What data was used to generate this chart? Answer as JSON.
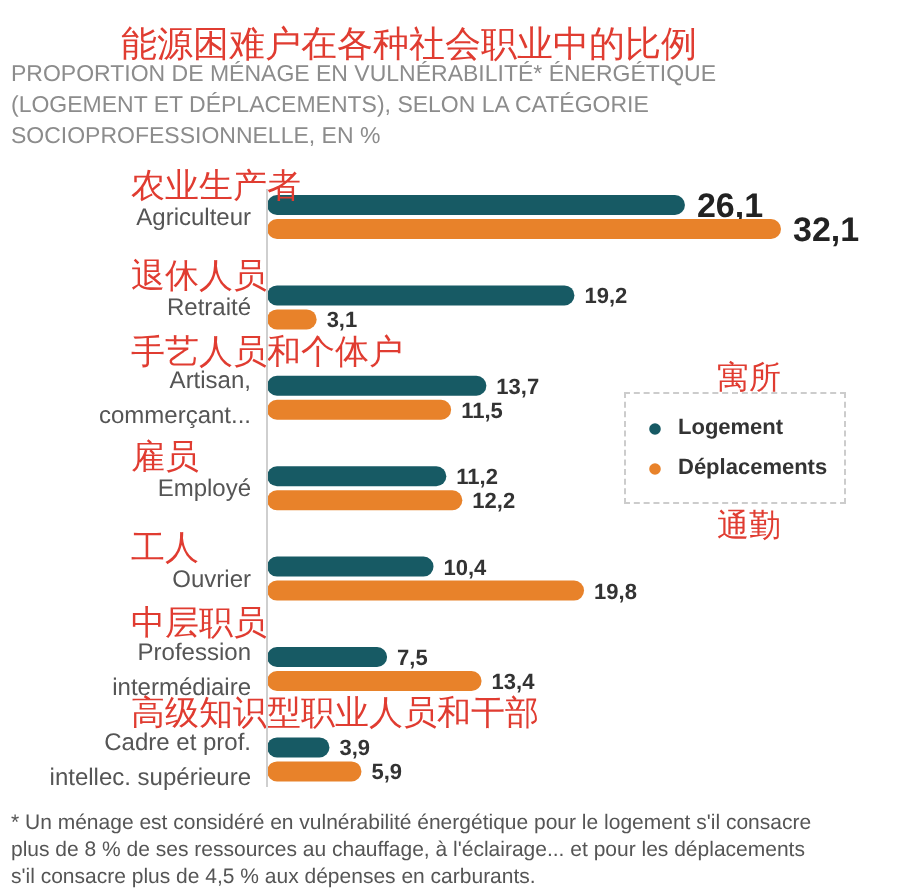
{
  "chart_data": {
    "type": "bar",
    "orientation": "horizontal",
    "title": "能源困难户在各种社会职业中的比例",
    "subtitle": "PROPORTION DE MÉNAGE EN VULNÉRABILITÉ* ÉNERGÉTIQUE (LOGEMENT ET DÉPLACEMENTS), SELON LA CATÉGORIE SOCIOPROFESSIONNELLE, EN %",
    "categories": [
      "Agriculteur",
      "Retraité",
      "Artisan, commerçant...",
      "Employé",
      "Ouvrier",
      "Profession intermédiaire",
      "Cadre et prof. intellec. supérieure"
    ],
    "series": [
      {
        "name": "Logement",
        "color": "#175a64",
        "values": [
          26.1,
          19.2,
          13.7,
          11.2,
          10.4,
          7.5,
          3.9
        ],
        "value_labels": [
          "26,1",
          "19,2",
          "13,7",
          "11,2",
          "10,4",
          "7,5",
          "3,9"
        ]
      },
      {
        "name": "Déplacements",
        "color": "#e8822a",
        "values": [
          32.1,
          3.1,
          11.5,
          12.2,
          19.8,
          13.4,
          5.9
        ],
        "value_labels": [
          "32,1",
          "3,1",
          "11,5",
          "12,2",
          "19,8",
          "13,4",
          "5,9"
        ]
      }
    ],
    "legend": "right",
    "tick_labels": "y",
    "annotations": [
      "农业生产者",
      "退休人员",
      "手艺人员和个体户",
      "雇员",
      "工人",
      "中层职员",
      "高级知识型职业人员和干部",
      "寓所",
      "通勤",
      "* Un ménage est considéré en vulnérabilité énergétique pour le logement s'il consacre plus de 8 % de ses ressources au chauffage, à l'éclairage... et pour les déplacements s'il consacre plus de 4,5 % aux dépenses en carburants."
    ]
  }
}
